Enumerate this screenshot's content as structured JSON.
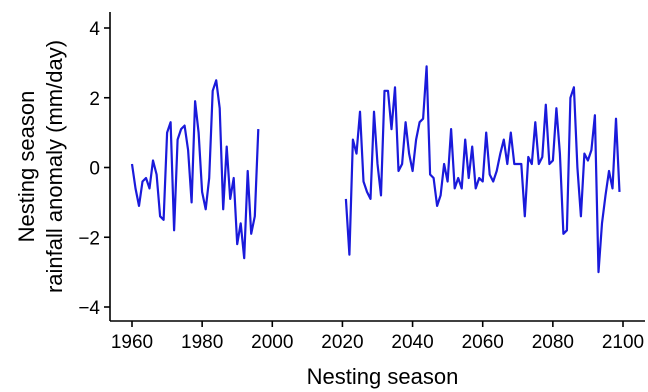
{
  "chart_data": {
    "type": "line",
    "title": "",
    "xlabel": "Nesting season",
    "ylabel_lines": [
      "Nesting season",
      "rainfall anomaly (mm/day)"
    ],
    "xlim": [
      1960,
      2100
    ],
    "ylim": [
      -4.3,
      4.3
    ],
    "xticks": [
      1960,
      1980,
      2000,
      2020,
      2040,
      2060,
      2080,
      2100
    ],
    "yticks": [
      -4,
      -2,
      0,
      2,
      4
    ],
    "grid": false,
    "legend": "none",
    "line_color": "#1a1adb",
    "series": [
      {
        "segments": [
          [
            [
              1960,
              0.1
            ],
            [
              1961,
              -0.6
            ],
            [
              1962,
              -1.1
            ],
            [
              1963,
              -0.4
            ],
            [
              1964,
              -0.3
            ],
            [
              1965,
              -0.6
            ],
            [
              1966,
              0.2
            ],
            [
              1967,
              -0.2
            ],
            [
              1968,
              -1.4
            ],
            [
              1969,
              -1.5
            ],
            [
              1970,
              1.0
            ],
            [
              1971,
              1.3
            ],
            [
              1972,
              -1.8
            ],
            [
              1973,
              0.8
            ],
            [
              1974,
              1.1
            ],
            [
              1975,
              1.2
            ],
            [
              1976,
              0.5
            ],
            [
              1977,
              -1.0
            ],
            [
              1978,
              1.9
            ],
            [
              1979,
              1.0
            ],
            [
              1980,
              -0.7
            ],
            [
              1981,
              -1.2
            ],
            [
              1982,
              -0.3
            ],
            [
              1983,
              2.2
            ],
            [
              1984,
              2.5
            ],
            [
              1985,
              1.7
            ],
            [
              1986,
              -1.2
            ],
            [
              1987,
              0.6
            ],
            [
              1988,
              -0.9
            ],
            [
              1989,
              -0.3
            ],
            [
              1990,
              -2.2
            ],
            [
              1991,
              -1.6
            ],
            [
              1992,
              -2.6
            ],
            [
              1993,
              -0.1
            ],
            [
              1994,
              -1.9
            ],
            [
              1995,
              -1.4
            ],
            [
              1996,
              1.1
            ]
          ],
          [
            [
              2021,
              -0.9
            ],
            [
              2022,
              -2.5
            ],
            [
              2023,
              0.8
            ],
            [
              2024,
              0.4
            ],
            [
              2025,
              1.6
            ],
            [
              2026,
              -0.4
            ],
            [
              2027,
              -0.7
            ],
            [
              2028,
              -0.9
            ],
            [
              2029,
              1.6
            ],
            [
              2030,
              0.1
            ],
            [
              2031,
              -0.8
            ],
            [
              2032,
              2.2
            ],
            [
              2033,
              2.2
            ],
            [
              2034,
              1.1
            ],
            [
              2035,
              2.3
            ],
            [
              2036,
              -0.1
            ],
            [
              2037,
              0.1
            ],
            [
              2038,
              1.3
            ],
            [
              2039,
              0.4
            ],
            [
              2040,
              -0.1
            ],
            [
              2041,
              0.8
            ],
            [
              2042,
              1.3
            ],
            [
              2043,
              1.4
            ],
            [
              2044,
              2.9
            ],
            [
              2045,
              -0.2
            ],
            [
              2046,
              -0.3
            ],
            [
              2047,
              -1.1
            ],
            [
              2048,
              -0.8
            ],
            [
              2049,
              0.1
            ],
            [
              2050,
              -0.4
            ],
            [
              2051,
              1.1
            ],
            [
              2052,
              -0.6
            ],
            [
              2053,
              -0.3
            ],
            [
              2054,
              -0.6
            ],
            [
              2055,
              0.8
            ],
            [
              2056,
              -0.3
            ],
            [
              2057,
              0.6
            ],
            [
              2058,
              -0.6
            ],
            [
              2059,
              -0.3
            ],
            [
              2060,
              -0.4
            ],
            [
              2061,
              1.0
            ],
            [
              2062,
              -0.2
            ],
            [
              2063,
              -0.4
            ],
            [
              2064,
              -0.1
            ],
            [
              2065,
              0.4
            ],
            [
              2066,
              0.8
            ],
            [
              2067,
              0.1
            ],
            [
              2068,
              1.0
            ],
            [
              2069,
              0.1
            ],
            [
              2070,
              0.1
            ],
            [
              2071,
              0.1
            ],
            [
              2072,
              -1.4
            ],
            [
              2073,
              0.3
            ],
            [
              2074,
              0.1
            ],
            [
              2075,
              1.3
            ],
            [
              2076,
              0.1
            ],
            [
              2077,
              0.3
            ],
            [
              2078,
              1.8
            ],
            [
              2079,
              0.1
            ],
            [
              2080,
              0.2
            ],
            [
              2081,
              1.7
            ],
            [
              2082,
              0.4
            ],
            [
              2083,
              -1.9
            ],
            [
              2084,
              -1.8
            ],
            [
              2085,
              2.0
            ],
            [
              2086,
              2.3
            ],
            [
              2087,
              0.0
            ],
            [
              2088,
              -1.4
            ],
            [
              2089,
              0.4
            ],
            [
              2090,
              0.2
            ],
            [
              2091,
              0.5
            ],
            [
              2092,
              1.5
            ],
            [
              2093,
              -3.0
            ],
            [
              2094,
              -1.6
            ],
            [
              2095,
              -0.8
            ],
            [
              2096,
              -0.1
            ],
            [
              2097,
              -0.6
            ],
            [
              2098,
              1.4
            ],
            [
              2099,
              -0.7
            ]
          ]
        ]
      }
    ]
  }
}
